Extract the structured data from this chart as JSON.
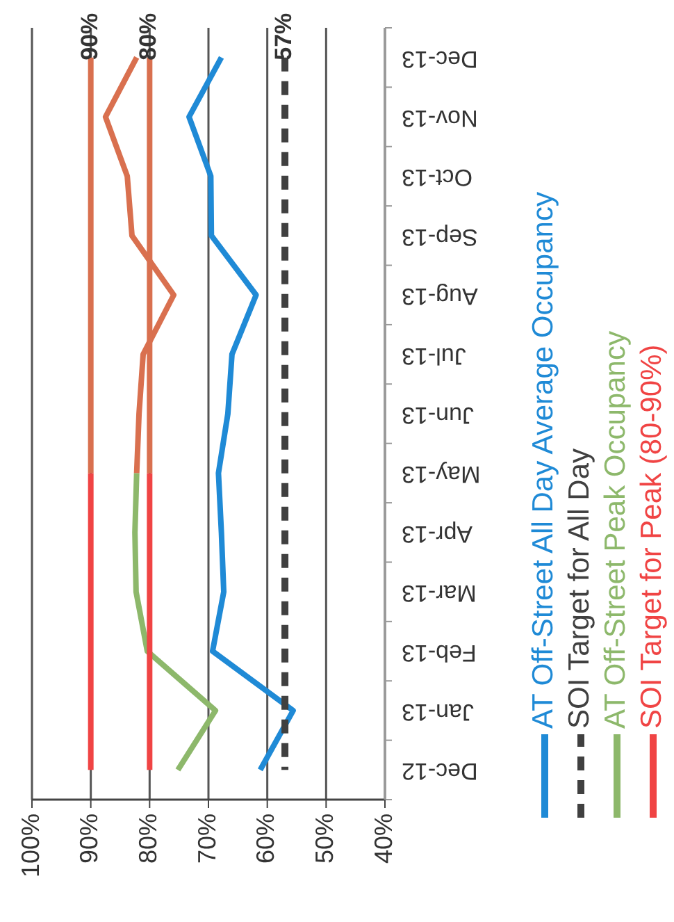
{
  "chart_data": {
    "type": "line",
    "orientation": "horizontal",
    "categories": [
      "Dec-13",
      "Nov-13",
      "Oct-13",
      "Sep-13",
      "Aug-13",
      "Jul-13",
      "Jun-13",
      "May-13",
      "Apr-13",
      "Mar-13",
      "Feb-13",
      "Jan-13",
      "Dec-12"
    ],
    "series": [
      {
        "name": "AT Off-Street All Day Average Occupancy",
        "color": "#1f8ad6",
        "values": [
          67.8,
          73.3,
          69.6,
          69.5,
          61.9,
          66,
          66.7,
          68.3,
          67.8,
          67.4,
          69.3,
          55.6,
          61.2
        ]
      },
      {
        "name": "SOI Target for All Day",
        "color": "#404040",
        "line_style": "dashed",
        "values": [
          57,
          57,
          57,
          57,
          57,
          57,
          57,
          57,
          57,
          57,
          57,
          57,
          57
        ],
        "value_labels": [
          "57%",
          null,
          null,
          null,
          null,
          null,
          null,
          null,
          null,
          null,
          null,
          null,
          null
        ]
      },
      {
        "name": "AT Off-Street Peak Occupancy",
        "color": "#8db86b",
        "values": [
          null,
          null,
          null,
          null,
          null,
          null,
          null,
          82.2,
          82.5,
          82.3,
          80.4,
          68.8,
          75.2
        ]
      },
      {
        "name": "SOI Target for Peak (80-90%)",
        "color": "#f04444",
        "values": [
          null,
          null,
          null,
          null,
          null,
          null,
          null,
          90,
          90,
          90,
          90,
          90,
          90
        ]
      },
      {
        "color": "#f04444",
        "values": [
          null,
          null,
          null,
          null,
          null,
          null,
          null,
          80,
          80,
          80,
          80,
          80,
          80
        ]
      },
      {
        "color": "#d9704f",
        "values": [
          82.2,
          87.5,
          83.8,
          83,
          75.9,
          81.1,
          81.8,
          82.2,
          null,
          null,
          null,
          null,
          null
        ]
      },
      {
        "color": "#d9704f",
        "values": [
          90,
          90,
          90,
          90,
          90,
          90,
          90,
          90,
          null,
          null,
          null,
          null,
          null
        ],
        "value_labels": [
          "90%",
          null,
          null,
          null,
          null,
          null,
          null,
          null,
          null,
          null,
          null,
          null,
          null
        ]
      },
      {
        "color": "#d9704f",
        "values": [
          80,
          80,
          80,
          80,
          80,
          80,
          80,
          80,
          null,
          null,
          null,
          null,
          null
        ],
        "value_labels": [
          "80%",
          null,
          null,
          null,
          null,
          null,
          null,
          null,
          null,
          null,
          null,
          null,
          null
        ]
      }
    ],
    "xlim": [
      100,
      40
    ],
    "xticks": [
      {
        "value": 100,
        "label": "100%"
      },
      {
        "value": 90,
        "label": "90%"
      },
      {
        "value": 80,
        "label": "80%"
      },
      {
        "value": 70,
        "label": "70%"
      },
      {
        "value": 60,
        "label": "60%"
      },
      {
        "value": 50,
        "label": "50%"
      },
      {
        "value": 40,
        "label": "40%"
      }
    ],
    "grid": "x",
    "legend": "right"
  }
}
